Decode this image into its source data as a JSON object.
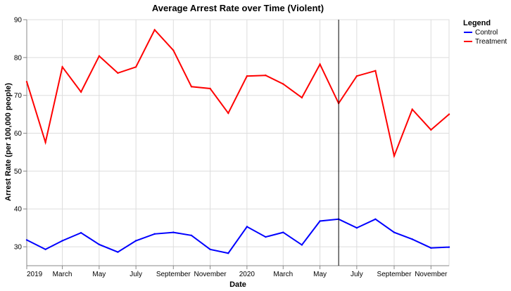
{
  "chart_data": {
    "type": "line",
    "title": "Average Arrest Rate over Time (Violent)",
    "xlabel": "Date",
    "ylabel": "Arrest Rate (per 100,000 people)",
    "x_ticks": [
      "2019",
      "March",
      "May",
      "July",
      "September",
      "November",
      "2020",
      "March",
      "May",
      "July",
      "September",
      "November"
    ],
    "x_tick_dates": [
      "2019-01-01",
      "2019-03-01",
      "2019-05-01",
      "2019-07-01",
      "2019-09-01",
      "2019-11-01",
      "2020-01-01",
      "2020-03-01",
      "2020-05-01",
      "2020-07-01",
      "2020-09-01",
      "2020-11-01"
    ],
    "x_domain": [
      "2019-01-01",
      "2020-12-01"
    ],
    "ylim": [
      25,
      90
    ],
    "y_ticks": [
      30,
      40,
      50,
      60,
      70,
      80,
      90
    ],
    "grid": true,
    "vertical_rule_date": "2020-06-01",
    "x": [
      "2019-01",
      "2019-02",
      "2019-03",
      "2019-04",
      "2019-05",
      "2019-06",
      "2019-07",
      "2019-08",
      "2019-09",
      "2019-10",
      "2019-11",
      "2019-12",
      "2020-01",
      "2020-02",
      "2020-03",
      "2020-04",
      "2020-05",
      "2020-06",
      "2020-07",
      "2020-08",
      "2020-09",
      "2020-10",
      "2020-11",
      "2020-12"
    ],
    "legend": {
      "title": "Legend",
      "position": "top-right"
    },
    "series": [
      {
        "name": "Control",
        "color": "#0000ff",
        "values": [
          31.8,
          29.3,
          31.6,
          33.7,
          30.6,
          28.6,
          31.6,
          33.4,
          33.8,
          33.0,
          29.3,
          28.3,
          35.3,
          32.6,
          33.8,
          30.5,
          36.8,
          37.3,
          35.0,
          37.3,
          33.8,
          32.0,
          29.7,
          29.9
        ]
      },
      {
        "name": "Treatment",
        "color": "#ff0000",
        "values": [
          73.6,
          57.6,
          77.5,
          70.9,
          80.4,
          75.9,
          77.5,
          87.3,
          81.9,
          72.3,
          71.8,
          65.3,
          75.1,
          75.3,
          73.0,
          69.4,
          78.2,
          67.9,
          75.1,
          76.5,
          54.0,
          66.3,
          60.9,
          65.0
        ]
      }
    ]
  }
}
